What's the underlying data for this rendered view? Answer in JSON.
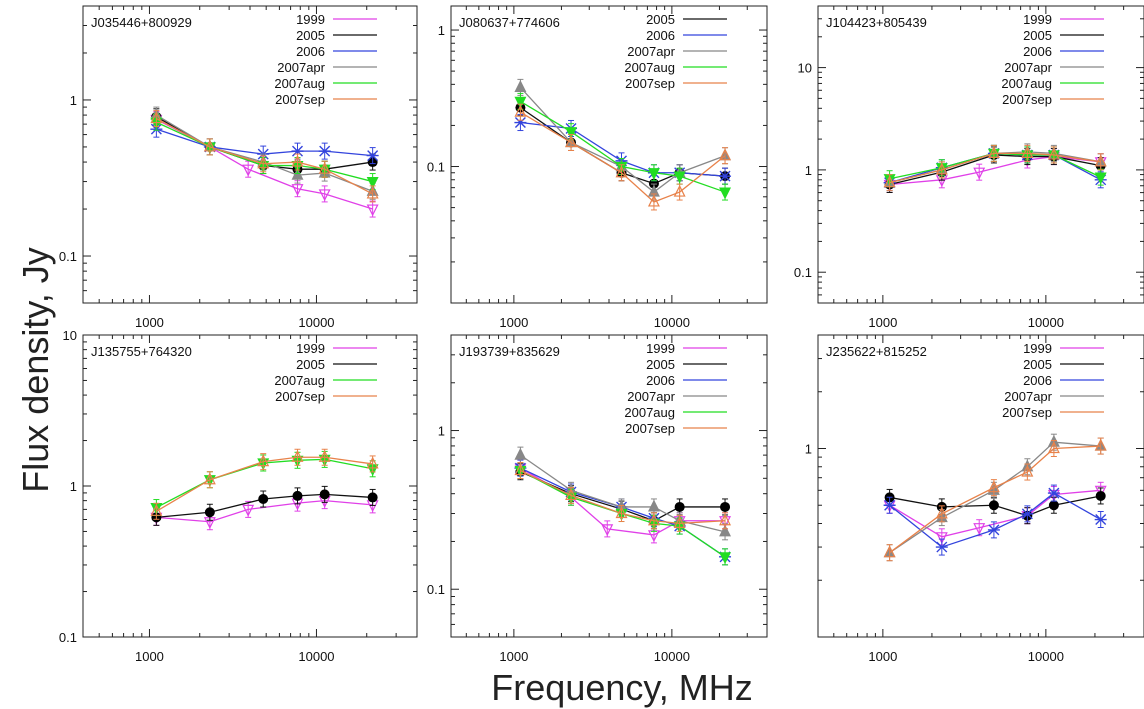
{
  "figure": {
    "ylabel": "Flux density, Jy",
    "xlabel": "Frequency, MHz"
  },
  "series_colors": {
    "1999": "#e040e8",
    "2005": "#111111",
    "2006": "#3344dd",
    "2007apr": "#888888",
    "2007aug": "#22dd22",
    "2007sep": "#e8824a"
  },
  "series_markers": {
    "1999": "tri-down-open",
    "2005": "circle",
    "2006": "star",
    "2007apr": "tri-up-filled",
    "2007aug": "tri-down-filled",
    "2007sep": "tri-up-open"
  },
  "chart_data": [
    {
      "type": "line",
      "title": "J035446+800929",
      "x_scale": "log",
      "y_scale": "log",
      "xlim": [
        400,
        40000
      ],
      "ylim": [
        0.05,
        4
      ],
      "x_ticks": [
        {
          "value": 1000,
          "label": "1000"
        },
        {
          "value": 10000,
          "label": "10000"
        }
      ],
      "y_ticks": [
        {
          "value": 1,
          "label": "1"
        },
        {
          "value": 0.1,
          "label": "0.1"
        }
      ],
      "series": [
        {
          "name": "1999",
          "x": [
            1100,
            2300,
            3900,
            7700,
            11200,
            21700
          ],
          "y": [
            0.75,
            0.5,
            0.36,
            0.27,
            0.25,
            0.2
          ]
        },
        {
          "name": "2005",
          "x": [
            1100,
            2300,
            4800,
            7700,
            11200,
            21700
          ],
          "y": [
            0.78,
            0.5,
            0.38,
            0.36,
            0.36,
            0.4
          ]
        },
        {
          "name": "2006",
          "x": [
            1100,
            2300,
            4800,
            7700,
            11200,
            21700
          ],
          "y": [
            0.65,
            0.5,
            0.45,
            0.47,
            0.47,
            0.44
          ]
        },
        {
          "name": "2007apr",
          "x": [
            1100,
            2300,
            4800,
            7700,
            11200,
            21700
          ],
          "y": [
            0.8,
            0.5,
            0.4,
            0.33,
            0.34,
            0.26
          ]
        },
        {
          "name": "2007aug",
          "x": [
            1100,
            2300,
            4800,
            7700,
            11200,
            21700
          ],
          "y": [
            0.72,
            0.5,
            0.38,
            0.38,
            0.36,
            0.3
          ]
        },
        {
          "name": "2007sep",
          "x": [
            1100,
            2300,
            4800,
            7700,
            11200,
            21700
          ],
          "y": [
            0.76,
            0.5,
            0.39,
            0.4,
            0.36,
            0.25
          ]
        }
      ]
    },
    {
      "type": "line",
      "title": "J080637+774606",
      "x_scale": "log",
      "y_scale": "log",
      "xlim": [
        400,
        40000
      ],
      "ylim": [
        0.01,
        1.5
      ],
      "x_ticks": [
        {
          "value": 1000,
          "label": "1000"
        },
        {
          "value": 10000,
          "label": "10000"
        }
      ],
      "y_ticks": [
        {
          "value": 1,
          "label": "1"
        },
        {
          "value": 0.1,
          "label": "0.1"
        }
      ],
      "series": [
        {
          "name": "2005",
          "x": [
            1100,
            2300,
            4800,
            7700,
            11200,
            21700
          ],
          "y": [
            0.27,
            0.15,
            0.09,
            0.075,
            0.09,
            0.085
          ]
        },
        {
          "name": "2006",
          "x": [
            1100,
            2300,
            4800,
            7700,
            11200,
            21700
          ],
          "y": [
            0.21,
            0.19,
            0.11,
            0.09,
            0.09,
            0.085
          ]
        },
        {
          "name": "2007apr",
          "x": [
            1100,
            2300,
            4800,
            7700,
            11200,
            21700
          ],
          "y": [
            0.38,
            0.15,
            0.1,
            0.065,
            0.09,
            0.12
          ]
        },
        {
          "name": "2007aug",
          "x": [
            1100,
            2300,
            4800,
            7700,
            11200,
            21700
          ],
          "y": [
            0.3,
            0.18,
            0.1,
            0.09,
            0.085,
            0.065
          ]
        },
        {
          "name": "2007sep",
          "x": [
            1100,
            2300,
            4800,
            7700,
            11200,
            21700
          ],
          "y": [
            0.25,
            0.15,
            0.09,
            0.055,
            0.065,
            0.12
          ]
        }
      ]
    },
    {
      "type": "line",
      "title": "J104423+805439",
      "x_scale": "log",
      "y_scale": "log",
      "xlim": [
        400,
        40000
      ],
      "ylim": [
        0.05,
        40
      ],
      "x_ticks": [
        {
          "value": 1000,
          "label": "1000"
        },
        {
          "value": 10000,
          "label": "10000"
        }
      ],
      "y_ticks": [
        {
          "value": 10,
          "label": "10"
        },
        {
          "value": 1,
          "label": "1"
        },
        {
          "value": 0.1,
          "label": "0.1"
        }
      ],
      "series": [
        {
          "name": "1999",
          "x": [
            1100,
            2300,
            3900,
            7700,
            11200,
            21700
          ],
          "y": [
            0.72,
            0.8,
            0.95,
            1.25,
            1.35,
            1.2
          ]
        },
        {
          "name": "2005",
          "x": [
            1100,
            2300,
            4800,
            7700,
            11200,
            21700
          ],
          "y": [
            0.72,
            0.95,
            1.4,
            1.35,
            1.35,
            1.1
          ]
        },
        {
          "name": "2006",
          "x": [
            1100,
            2300,
            4800,
            7700,
            11200,
            21700
          ],
          "y": [
            0.75,
            1.05,
            1.45,
            1.4,
            1.4,
            0.8
          ]
        },
        {
          "name": "2007apr",
          "x": [
            1100,
            2300,
            4800,
            7700,
            11200,
            21700
          ],
          "y": [
            0.75,
            1.0,
            1.45,
            1.5,
            1.45,
            1.2
          ]
        },
        {
          "name": "2007aug",
          "x": [
            1100,
            2300,
            4800,
            7700,
            11200,
            21700
          ],
          "y": [
            0.82,
            1.05,
            1.45,
            1.4,
            1.4,
            0.85
          ]
        },
        {
          "name": "2007sep",
          "x": [
            1100,
            2300,
            4800,
            7700,
            11200,
            21700
          ],
          "y": [
            0.75,
            1.0,
            1.45,
            1.45,
            1.4,
            1.2
          ]
        }
      ]
    },
    {
      "type": "line",
      "title": "J135755+764320",
      "x_scale": "log",
      "y_scale": "log",
      "xlim": [
        400,
        40000
      ],
      "ylim": [
        0.1,
        10
      ],
      "x_ticks": [
        {
          "value": 1000,
          "label": "1000"
        },
        {
          "value": 10000,
          "label": "10000"
        }
      ],
      "y_ticks": [
        {
          "value": 10,
          "label": "10"
        },
        {
          "value": 1,
          "label": "1"
        },
        {
          "value": 0.1,
          "label": "0.1"
        }
      ],
      "series": [
        {
          "name": "1999",
          "x": [
            1100,
            2300,
            3900,
            7700,
            11200,
            21700
          ],
          "y": [
            0.62,
            0.58,
            0.7,
            0.77,
            0.8,
            0.75
          ]
        },
        {
          "name": "2005",
          "x": [
            1100,
            2300,
            4800,
            7700,
            11200,
            21700
          ],
          "y": [
            0.62,
            0.67,
            0.82,
            0.86,
            0.88,
            0.84
          ]
        },
        {
          "name": "2007aug",
          "x": [
            1100,
            2300,
            4800,
            7700,
            11200,
            21700
          ],
          "y": [
            0.72,
            1.1,
            1.42,
            1.48,
            1.5,
            1.3
          ]
        },
        {
          "name": "2007sep",
          "x": [
            1100,
            2300,
            4800,
            7700,
            11200,
            21700
          ],
          "y": [
            0.68,
            1.1,
            1.45,
            1.55,
            1.55,
            1.4
          ]
        }
      ]
    },
    {
      "type": "line",
      "title": "J193739+835629",
      "x_scale": "log",
      "y_scale": "log",
      "xlim": [
        400,
        40000
      ],
      "ylim": [
        0.05,
        4
      ],
      "x_ticks": [
        {
          "value": 1000,
          "label": "1000"
        },
        {
          "value": 10000,
          "label": "10000"
        }
      ],
      "y_ticks": [
        {
          "value": 1,
          "label": "1"
        },
        {
          "value": 0.1,
          "label": "0.1"
        }
      ],
      "series": [
        {
          "name": "1999",
          "x": [
            1100,
            2300,
            3900,
            7700,
            11200,
            21700
          ],
          "y": [
            0.58,
            0.38,
            0.24,
            0.22,
            0.27,
            0.27
          ]
        },
        {
          "name": "2005",
          "x": [
            1100,
            2300,
            4800,
            7700,
            11200,
            21700
          ],
          "y": [
            0.55,
            0.4,
            0.32,
            0.27,
            0.33,
            0.33
          ]
        },
        {
          "name": "2006",
          "x": [
            1100,
            2300,
            4800,
            7700,
            11200,
            21700
          ],
          "y": [
            0.58,
            0.41,
            0.33,
            0.28,
            0.25,
            0.16
          ]
        },
        {
          "name": "2007apr",
          "x": [
            1100,
            2300,
            4800,
            7700,
            11200,
            21700
          ],
          "y": [
            0.7,
            0.42,
            0.33,
            0.33,
            0.27,
            0.23
          ]
        },
        {
          "name": "2007aug",
          "x": [
            1100,
            2300,
            4800,
            7700,
            11200,
            21700
          ],
          "y": [
            0.56,
            0.38,
            0.3,
            0.26,
            0.25,
            0.16
          ]
        },
        {
          "name": "2007sep",
          "x": [
            1100,
            2300,
            4800,
            7700,
            11200,
            21700
          ],
          "y": [
            0.56,
            0.39,
            0.3,
            0.27,
            0.26,
            0.27
          ]
        }
      ]
    },
    {
      "type": "line",
      "title": "J235622+815252",
      "x_scale": "log",
      "y_scale": "log",
      "xlim": [
        400,
        40000
      ],
      "ylim": [
        0.1,
        4
      ],
      "x_ticks": [
        {
          "value": 1000,
          "label": "1000"
        },
        {
          "value": 10000,
          "label": "10000"
        }
      ],
      "y_ticks": [
        {
          "value": 1,
          "label": "1"
        }
      ],
      "series": [
        {
          "name": "1999",
          "x": [
            1100,
            2300,
            3900,
            7700,
            11200,
            21700
          ],
          "y": [
            0.5,
            0.34,
            0.38,
            0.44,
            0.57,
            0.6
          ]
        },
        {
          "name": "2005",
          "x": [
            1100,
            2300,
            4800,
            7700,
            11200,
            21700
          ],
          "y": [
            0.55,
            0.49,
            0.5,
            0.44,
            0.5,
            0.56
          ]
        },
        {
          "name": "2006",
          "x": [
            1100,
            2300,
            4800,
            7700,
            11200,
            21700
          ],
          "y": [
            0.5,
            0.3,
            0.37,
            0.45,
            0.58,
            0.42
          ]
        },
        {
          "name": "2007apr",
          "x": [
            1100,
            2300,
            4800,
            7700,
            11200,
            21700
          ],
          "y": [
            0.28,
            0.43,
            0.6,
            0.8,
            1.08,
            1.03
          ]
        },
        {
          "name": "2007sep",
          "x": [
            1100,
            2300,
            4800,
            7700,
            11200,
            21700
          ],
          "y": [
            0.28,
            0.45,
            0.62,
            0.75,
            1.0,
            1.03
          ]
        }
      ]
    }
  ]
}
